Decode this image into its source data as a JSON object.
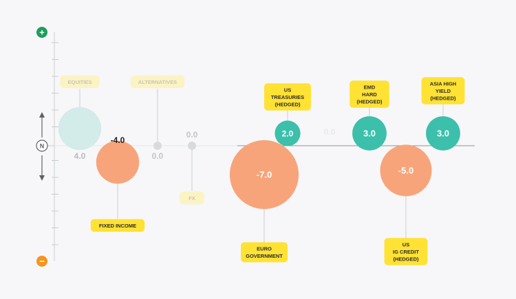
{
  "scale_markers": {
    "positive": "+",
    "neutral": "N",
    "negative": "−"
  },
  "colors": {
    "positive_marker": "#1a9e5c",
    "negative_marker": "#f7941d",
    "overweight_bubble": "#3cbfab",
    "underweight_bubble": "#f8a47a",
    "neutral_dot": "#d9dadd",
    "faded_bubble": "#d3ebe9",
    "label_fill": "#ffe234",
    "label_faded": "#fbf3c4",
    "axis": "#c8ccd0"
  },
  "chart_data": {
    "type": "bubble",
    "title": "",
    "ylim": [
      -7,
      7
    ],
    "neutral_value": 0,
    "points": [
      {
        "label": "EQUITIES",
        "value": 4.0,
        "value_text": "4.0",
        "faded": true,
        "label_side": "above"
      },
      {
        "label": "FIXED INCOME",
        "value": -4.0,
        "value_text": "-4.0",
        "faded": false,
        "label_side": "below"
      },
      {
        "label": "ALTERNATIVES",
        "value": 0.0,
        "value_text": "0.0",
        "faded": true,
        "label_side": "above"
      },
      {
        "label": "FX",
        "value": 0.0,
        "value_text": "0.0",
        "faded": true,
        "label_side": "below"
      },
      {
        "label": "EURO\nGOVERNMENT",
        "value": -7.0,
        "value_text": "-7.0",
        "faded": false,
        "label_side": "below"
      },
      {
        "label": "US\nTREASURIES\n(HEDGED)",
        "value": 2.0,
        "value_text": "2.0",
        "faded": false,
        "label_side": "above"
      },
      {
        "label": "",
        "value": 0.0,
        "value_text": "0.0",
        "faded": true,
        "hidden": true,
        "label_side": "none"
      },
      {
        "label": "EMD\nHARD\n(HEDGED)",
        "value": 3.0,
        "value_text": "3.0",
        "faded": false,
        "label_side": "above"
      },
      {
        "label": "US\nIG CREDIT\n(HEDGED)",
        "value": -5.0,
        "value_text": "-5.0",
        "faded": false,
        "label_side": "below"
      },
      {
        "label": "ASIA HIGH\nYIELD\n(HEDGED)",
        "value": 3.0,
        "value_text": "3.0",
        "faded": false,
        "label_side": "above"
      }
    ]
  }
}
